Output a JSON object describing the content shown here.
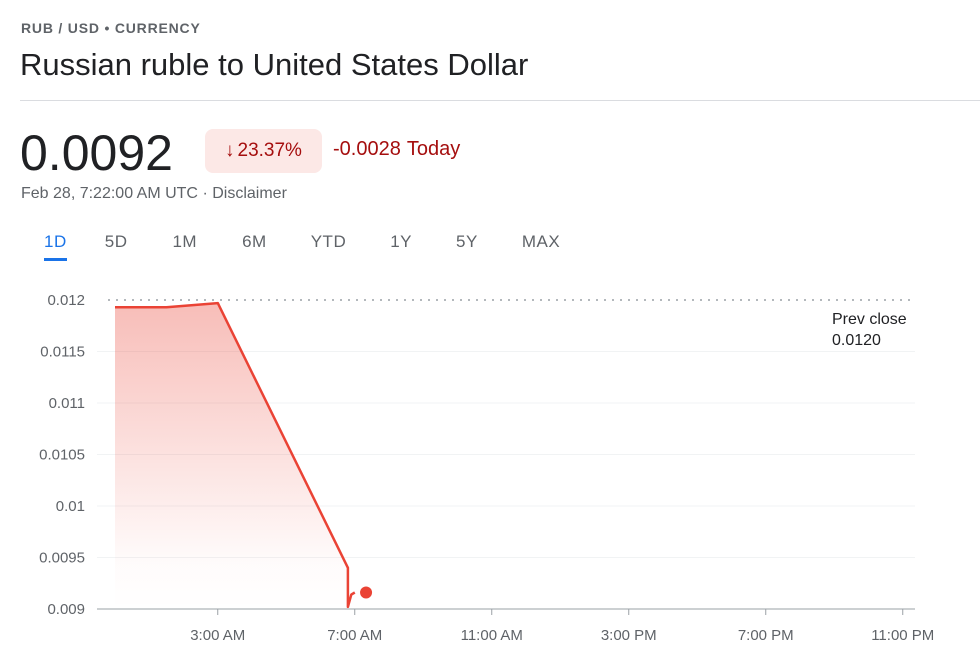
{
  "header": {
    "breadcrumb": "RUB / USD • CURRENCY",
    "title": "Russian ruble to United States Dollar"
  },
  "quote": {
    "price": "0.0092",
    "change_percent": "23.37%",
    "change_value": "-0.0028",
    "change_label": "Today",
    "timestamp": "Feb 28, 7:22:00 AM UTC",
    "separator": "·",
    "disclaimer": "Disclaimer"
  },
  "colors": {
    "down": "#ea4335",
    "down_text": "#a50e0e",
    "active_tab": "#1a73e8"
  },
  "tabs": [
    {
      "label": "1D",
      "active": true
    },
    {
      "label": "5D",
      "active": false
    },
    {
      "label": "1M",
      "active": false
    },
    {
      "label": "6M",
      "active": false
    },
    {
      "label": "YTD",
      "active": false
    },
    {
      "label": "1Y",
      "active": false
    },
    {
      "label": "5Y",
      "active": false
    },
    {
      "label": "MAX",
      "active": false
    }
  ],
  "chart_data": {
    "type": "area",
    "ylim": [
      0.009,
      0.012
    ],
    "xlim": [
      0,
      24
    ],
    "y_ticks": [
      "0.012",
      "0.0115",
      "0.011",
      "0.0105",
      "0.01",
      "0.0095",
      "0.009"
    ],
    "y_tick_values": [
      0.012,
      0.0115,
      0.011,
      0.0105,
      0.01,
      0.0095,
      0.009
    ],
    "x_ticks": [
      "3:00 AM",
      "7:00 AM",
      "11:00 AM",
      "3:00 PM",
      "7:00 PM",
      "11:00 PM"
    ],
    "x_tick_values": [
      3,
      7,
      11,
      15,
      19,
      23
    ],
    "series": [
      {
        "x": [
          0,
          1.5,
          3.0,
          6.8,
          6.8,
          6.9,
          7.0
        ],
        "y": [
          0.01193,
          0.01193,
          0.01197,
          0.0094,
          0.00902,
          0.00914,
          0.00916
        ]
      }
    ],
    "current_point": {
      "x": 7.33,
      "y": 0.00916
    },
    "prev_close": {
      "label": "Prev close",
      "value": "0.0120",
      "y": 0.012
    },
    "grid": true
  }
}
